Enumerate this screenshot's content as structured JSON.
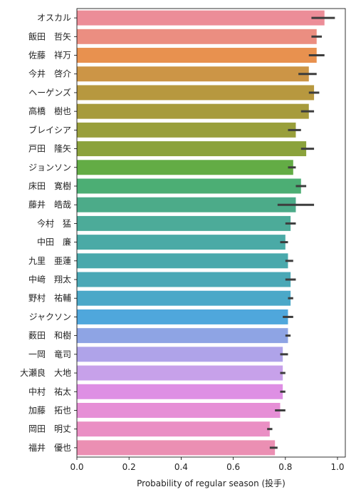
{
  "chart_data": {
    "type": "bar",
    "orientation": "horizontal",
    "title": "",
    "xlabel": "Probability of regular season (投手)",
    "ylabel": "",
    "xlim": [
      0.0,
      1.03
    ],
    "xticks": [
      "0.0",
      "0.2",
      "0.4",
      "0.6",
      "0.8",
      "1.0"
    ],
    "grid": false,
    "error_bars": true,
    "categories": [
      "オスカル",
      "飯田　哲矢",
      "佐藤　祥万",
      "今井　啓介",
      "ヘーゲンズ",
      "高橋　樹也",
      "ブレイシア",
      "戸田　隆矢",
      "ジョンソン",
      "床田　寛樹",
      "藤井　皓哉",
      "今村　猛",
      "中田　廉",
      "九里　亜蓮",
      "中﨑　翔太",
      "野村　祐輔",
      "ジャクソン",
      "薮田　和樹",
      "一岡　竜司",
      "大瀬良　大地",
      "中村　祐太",
      "加藤　拓也",
      "岡田　明丈",
      "福井　優也"
    ],
    "values": [
      0.95,
      0.92,
      0.92,
      0.89,
      0.91,
      0.89,
      0.84,
      0.88,
      0.83,
      0.86,
      0.84,
      0.82,
      0.8,
      0.81,
      0.82,
      0.82,
      0.81,
      0.81,
      0.79,
      0.79,
      0.79,
      0.78,
      0.74,
      0.76
    ],
    "ci_low": [
      0.9,
      0.9,
      0.89,
      0.85,
      0.89,
      0.86,
      0.81,
      0.86,
      0.81,
      0.84,
      0.77,
      0.8,
      0.78,
      0.8,
      0.8,
      0.81,
      0.79,
      0.8,
      0.78,
      0.78,
      0.78,
      0.76,
      0.73,
      0.74
    ],
    "ci_high": [
      0.99,
      0.94,
      0.95,
      0.92,
      0.93,
      0.91,
      0.86,
      0.91,
      0.84,
      0.88,
      0.91,
      0.84,
      0.81,
      0.83,
      0.84,
      0.83,
      0.83,
      0.82,
      0.81,
      0.8,
      0.8,
      0.8,
      0.75,
      0.77
    ],
    "colors": [
      "#ec8d98",
      "#eb8e81",
      "#e8914f",
      "#cc9546",
      "#b7983f",
      "#a79b3c",
      "#999f3b",
      "#8ba23c",
      "#63ac45",
      "#4cae74",
      "#4cab89",
      "#4cab99",
      "#4aaaa6",
      "#49a9ac",
      "#4aa8b6",
      "#4ba8c8",
      "#4fa7dc",
      "#8ea4e4",
      "#afa3e9",
      "#c7a1ea",
      "#de8fe4",
      "#e68fd6",
      "#ea8fc4",
      "#eb8fb3"
    ]
  }
}
